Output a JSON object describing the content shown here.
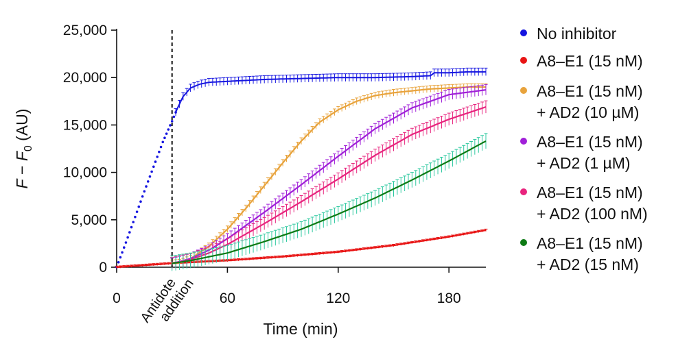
{
  "chart_data": {
    "type": "line",
    "title": "",
    "xlabel": "Time (min)",
    "ylabel": {
      "main": "F − F",
      "sub": "0",
      "unit": " (AU)"
    },
    "xlim": [
      0,
      200
    ],
    "ylim": [
      0,
      25000
    ],
    "xticks": [
      0,
      60,
      120,
      180
    ],
    "yticks": [
      0,
      5000,
      10000,
      15000,
      20000,
      25000
    ],
    "xtick_labels": [
      "0",
      "60",
      "120",
      "180"
    ],
    "ytick_labels": [
      "0",
      "5,000",
      "10,000",
      "15,000",
      "20,000",
      "25,000"
    ],
    "annotation": {
      "x": 30,
      "lines": [
        "Antidote",
        "addition"
      ]
    },
    "legend_position": "right",
    "series": [
      {
        "name": "No inhibitor",
        "legend": [
          "No inhibitor"
        ],
        "color": "#1515e0",
        "x": [
          0,
          5,
          10,
          15,
          20,
          25,
          30,
          33,
          36,
          40,
          45,
          50,
          60,
          80,
          100,
          120,
          140,
          160,
          170,
          172,
          180,
          190,
          200
        ],
        "y": [
          0,
          2600,
          5300,
          8000,
          10600,
          13200,
          15400,
          16800,
          18000,
          18900,
          19300,
          19500,
          19600,
          19800,
          19900,
          20000,
          20000,
          20100,
          20200,
          20500,
          20500,
          20600,
          20600
        ],
        "error": 400
      },
      {
        "name": "A8–E1 (15 nM)",
        "legend": [
          "A8–E1 (15 nM)"
        ],
        "color": "#e81414",
        "x": [
          0,
          30,
          60,
          90,
          120,
          150,
          180,
          200
        ],
        "y": [
          0,
          400,
          700,
          1100,
          1600,
          2300,
          3200,
          3900
        ],
        "error": 120
      },
      {
        "name": "A8–E1 (15 nM) + AD2 (10 µM)",
        "legend": [
          "A8–E1 (15 nM)",
          "+ AD2 (10 µM)"
        ],
        "color": "#e8a33c",
        "x": [
          30,
          35,
          40,
          50,
          60,
          70,
          80,
          90,
          100,
          110,
          120,
          130,
          140,
          150,
          160,
          170,
          180,
          190,
          200
        ],
        "y": [
          400,
          500,
          900,
          2200,
          4000,
          6200,
          8600,
          11000,
          13300,
          15300,
          16600,
          17500,
          18100,
          18400,
          18600,
          18800,
          18900,
          19000,
          19000
        ],
        "error": 350
      },
      {
        "name": "A8–E1 (15 nM) + AD2 (1 µM)",
        "legend": [
          "A8–E1 (15 nM)",
          "+ AD2 (1 µM)"
        ],
        "color": "#a020d8",
        "x": [
          30,
          40,
          50,
          60,
          80,
          100,
          120,
          140,
          160,
          180,
          200
        ],
        "y": [
          400,
          900,
          1800,
          3000,
          5800,
          8700,
          11700,
          14600,
          16800,
          18200,
          18700
        ],
        "error": 550
      },
      {
        "name": "A8–E1 (15 nM) + AD2 (100 nM)",
        "legend": [
          "A8–E1 (15 nM)",
          "+ AD2 (100 nM)"
        ],
        "color": "#e8237d",
        "x": [
          30,
          40,
          50,
          60,
          80,
          100,
          120,
          140,
          160,
          180,
          200
        ],
        "y": [
          400,
          800,
          1500,
          2400,
          4600,
          6900,
          9300,
          11800,
          14000,
          15600,
          16900
        ],
        "error": 650
      },
      {
        "name": "A8–E1 (15 nM) + AD2 (15 nM)",
        "legend": [
          "A8–E1 (15 nM)",
          "+ AD2 (15 nM)"
        ],
        "color": "#0d7a14",
        "error_color": "#2ec9a0",
        "x": [
          30,
          40,
          60,
          80,
          100,
          120,
          140,
          160,
          180,
          200
        ],
        "y": [
          400,
          700,
          1500,
          2700,
          4000,
          5600,
          7300,
          9200,
          11200,
          13300
        ],
        "error": 800
      }
    ]
  }
}
